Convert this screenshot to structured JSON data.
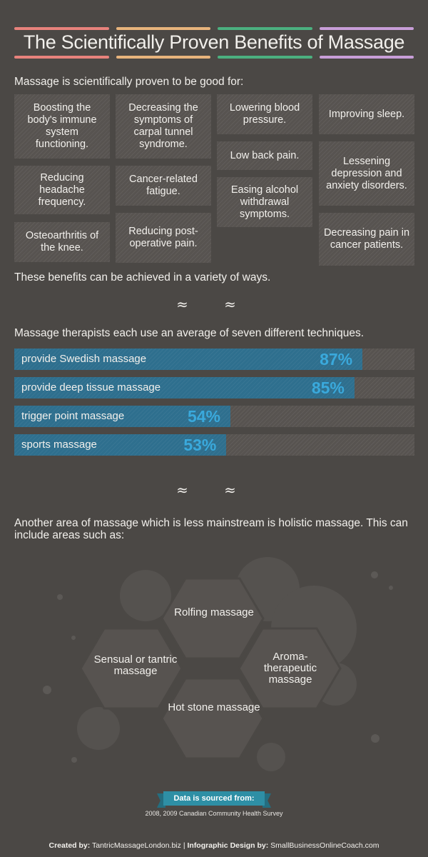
{
  "title": "The Scientifically Proven Benefits of Massage",
  "accent_colors": [
    "#e8827c",
    "#e8b47c",
    "#4bb07f",
    "#c89ed8"
  ],
  "intro": "Massage is scientifically proven to be good for:",
  "benefits": [
    "Boosting the body's immune system functioning.",
    "Reducing headache frequency.",
    "Osteoarthritis of the knee.",
    "Decreasing the symptoms of carpal tunnel syndrome.",
    "Cancer-related fatigue.",
    "Reducing post-operative pain.",
    "Lowering blood pressure.",
    "Low back pain.",
    "Easing alcohol withdrawal symptoms.",
    "Improving sleep.",
    "Lessening depression and anxiety disorders.",
    "Decreasing pain in cancer patients."
  ],
  "benefits_outro": "These benefits can be achieved in a variety of ways.",
  "divider_glyph": "≈ ≈",
  "techniques_intro": "Massage therapists each use an average of seven different techniques.",
  "chart_data": {
    "type": "bar",
    "categories": [
      "provide Swedish massage",
      "provide deep tissue massage",
      "trigger point massage",
      "sports massage"
    ],
    "values": [
      87,
      85,
      54,
      53
    ],
    "value_labels": [
      "87%",
      "85%",
      "54%",
      "53%"
    ],
    "xlim": [
      0,
      100
    ],
    "orientation": "horizontal",
    "bar_color": "#2e6f8e",
    "label_color": "#3aa9dc"
  },
  "holistic_text": "Another area of massage which is less mainstream is holistic massage. This can include areas such as:",
  "holistic_types": [
    "Rolfing massage",
    "Sensual or tantric massage",
    "Aroma-therapeutic massage",
    "Hot stone massage"
  ],
  "source_ribbon": "Data is sourced from:",
  "source": "2008, 2009 Canadian Community Health Survey",
  "credits": {
    "created_label": "Created by:",
    "created_value": "TantricMassageLondon.biz",
    "separator": "|",
    "design_label": "Infographic Design by:",
    "design_value": "SmallBusinessOnlineCoach.com"
  }
}
